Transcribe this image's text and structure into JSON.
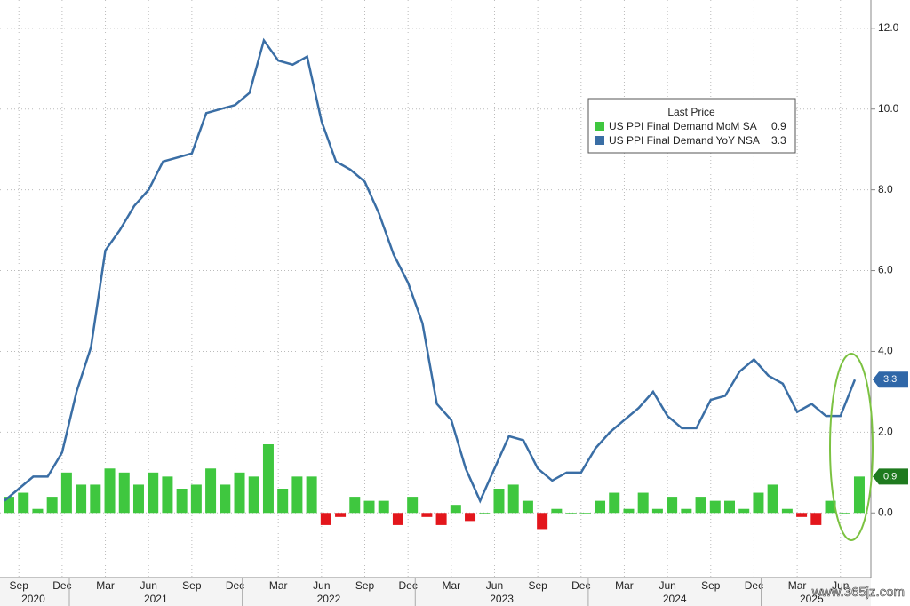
{
  "chart_data": {
    "type": "bar_line",
    "legend_title": "Last Price",
    "legend": "top-right",
    "grid": true,
    "categories": [
      null,
      "Sep",
      null,
      null,
      "Dec",
      null,
      null,
      "Mar",
      null,
      null,
      "Jun",
      null,
      null,
      "Sep",
      null,
      null,
      "Dec",
      null,
      null,
      "Mar",
      null,
      null,
      "Jun",
      null,
      null,
      "Sep",
      null,
      null,
      "Dec",
      null,
      null,
      "Mar",
      null,
      null,
      "Jun",
      null,
      null,
      "Sep",
      null,
      null,
      "Dec",
      null,
      null,
      "Mar",
      null,
      null,
      "Jun",
      null,
      null,
      "Sep",
      null,
      null,
      "Dec",
      null,
      null,
      "Mar",
      null,
      null,
      "Jun",
      null
    ],
    "years": [
      "2020",
      "2021",
      "2022",
      "2023",
      "2024",
      "2025"
    ],
    "series": [
      {
        "name": "US PPI Final Demand MoM SA",
        "type": "bar",
        "color": "#3fc73f",
        "negative_color": "#e3161c",
        "values": [
          0.4,
          0.5,
          0.1,
          0.4,
          1.0,
          0.7,
          0.7,
          1.1,
          1.0,
          0.7,
          1.0,
          0.9,
          0.6,
          0.7,
          1.1,
          0.7,
          1.0,
          0.9,
          1.7,
          0.6,
          0.9,
          0.9,
          -0.3,
          -0.1,
          0.4,
          0.3,
          0.3,
          -0.3,
          0.4,
          -0.1,
          -0.3,
          0.2,
          -0.2,
          0.0,
          0.6,
          0.7,
          0.3,
          -0.4,
          0.1,
          0.0,
          0.0,
          0.3,
          0.5,
          0.1,
          0.5,
          0.1,
          0.4,
          0.1,
          0.4,
          0.3,
          0.3,
          0.1,
          0.5,
          0.7,
          0.1,
          -0.1,
          -0.3,
          0.3,
          0.0,
          0.9
        ]
      },
      {
        "name": "US PPI Final Demand YoY NSA",
        "type": "line",
        "color": "#3a6ea5",
        "values": [
          0.3,
          0.6,
          0.9,
          0.9,
          1.5,
          3.0,
          4.1,
          6.5,
          7.0,
          7.6,
          8.0,
          8.7,
          8.8,
          8.9,
          9.9,
          10.0,
          10.1,
          10.4,
          11.7,
          11.2,
          11.1,
          11.3,
          9.7,
          8.7,
          8.5,
          8.2,
          7.4,
          6.4,
          5.7,
          4.7,
          2.7,
          2.3,
          1.1,
          0.3,
          1.1,
          1.9,
          1.8,
          1.1,
          0.8,
          1.0,
          1.0,
          1.6,
          2.0,
          2.3,
          2.6,
          3.0,
          2.4,
          2.1,
          2.1,
          2.8,
          2.9,
          3.5,
          3.8,
          3.4,
          3.2,
          2.5,
          2.7,
          2.4,
          2.4,
          3.3
        ]
      }
    ],
    "ylim": [
      -1.6,
      12.7
    ],
    "yticks": [
      {
        "value": 0,
        "label": "0.0"
      },
      {
        "value": 2,
        "label": "2.0"
      },
      {
        "value": 4,
        "label": "4.0"
      },
      {
        "value": 6,
        "label": "6.0"
      },
      {
        "value": 8,
        "label": "8.0"
      },
      {
        "value": 10,
        "label": "10.0"
      },
      {
        "value": 12,
        "label": "12.0"
      }
    ],
    "watermark": "www.365jz.com"
  }
}
